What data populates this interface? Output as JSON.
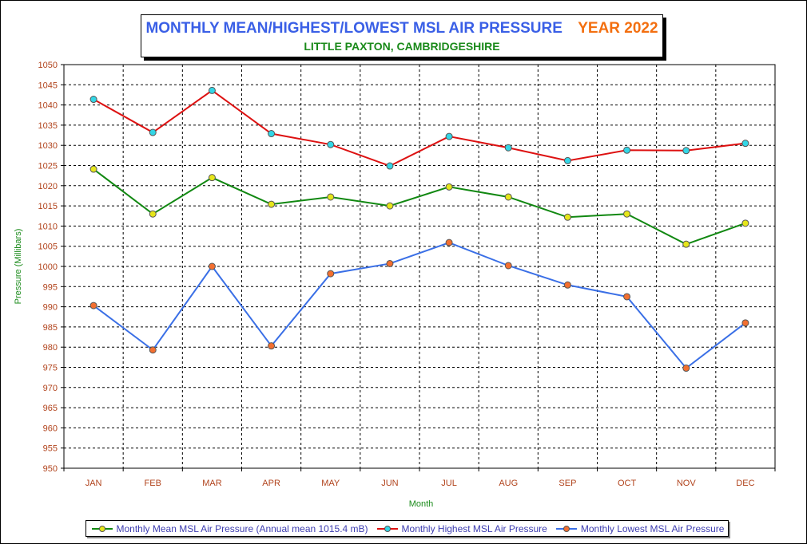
{
  "title": {
    "main": "MONTHLY MEAN/HIGHEST/LOWEST MSL AIR PRESSURE",
    "year": "YEAR 2022",
    "subtitle": "LITTLE PAXTON, CAMBRIDGESHIRE"
  },
  "colors": {
    "title_main": "#3a5fe6",
    "title_year": "#f36f10",
    "subtitle": "#1a8a1a",
    "mean_line": "#118811",
    "mean_marker": "#e6e61a",
    "highest_line": "#dd1111",
    "highest_marker": "#33d6e6",
    "lowest_line": "#3a6fe6",
    "lowest_marker": "#f36f30",
    "tick_labels": "#b1431c",
    "axis_titles": "#1a8a1a",
    "legend_text": "#3d3db0"
  },
  "chart_data": {
    "type": "line",
    "title": "MONTHLY MEAN/HIGHEST/LOWEST MSL AIR PRESSURE",
    "subtitle": "LITTLE PAXTON, CAMBRIDGESHIRE",
    "xlabel": "Month",
    "ylabel": "Pressure (Millibars)",
    "ylim": [
      950,
      1050
    ],
    "ytick_step": 5,
    "grid": "dashed",
    "legend_position": "bottom",
    "categories": [
      "JAN",
      "FEB",
      "MAR",
      "APR",
      "MAY",
      "JUN",
      "JUL",
      "AUG",
      "SEP",
      "OCT",
      "NOV",
      "DEC"
    ],
    "series": [
      {
        "name": "Monthly Mean MSL Air Pressure (Annual mean 1015.4 mB)",
        "key": "mean",
        "values": [
          1024.1,
          1013.0,
          1022.0,
          1015.4,
          1017.2,
          1015.0,
          1019.7,
          1017.2,
          1012.2,
          1013.0,
          1005.5,
          1010.7
        ]
      },
      {
        "name": "Monthly Highest MSL Air Pressure",
        "key": "highest",
        "values": [
          1041.4,
          1033.2,
          1043.6,
          1032.9,
          1030.2,
          1024.9,
          1032.2,
          1029.4,
          1026.2,
          1028.8,
          1028.7,
          1030.5
        ]
      },
      {
        "name": "Monthly Lowest MSL Air Pressure",
        "key": "lowest",
        "values": [
          990.3,
          979.3,
          1000.0,
          980.3,
          998.2,
          1000.7,
          1005.9,
          1000.2,
          995.4,
          992.5,
          974.8,
          986.0
        ]
      }
    ]
  }
}
